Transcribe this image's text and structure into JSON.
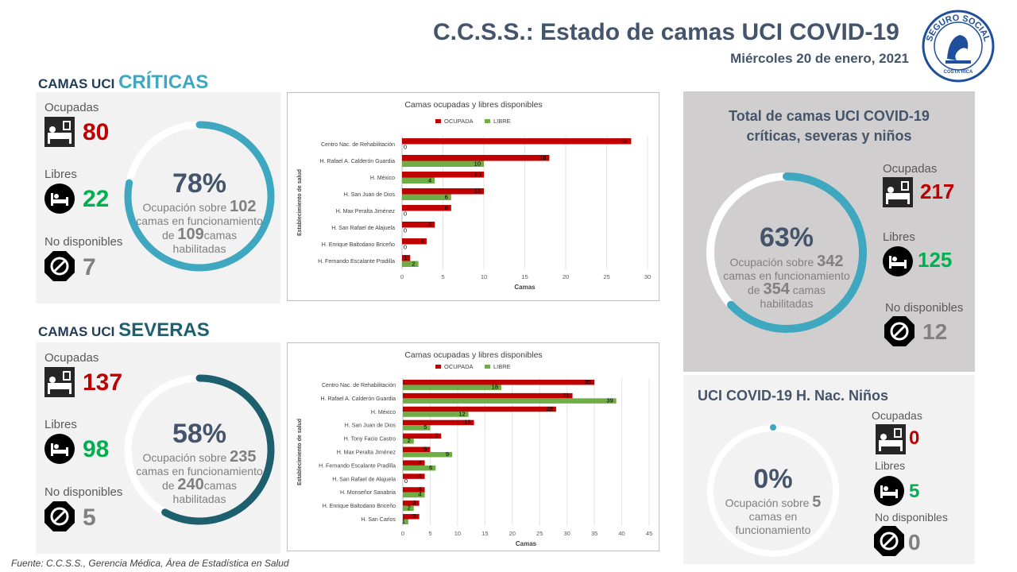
{
  "header": {
    "title": "C.C.S.S.: Estado de camas UCI COVID-19",
    "date": "Miércoles 20 de enero, 2021"
  },
  "logo": {
    "top_text": "SEGURO SOCIAL",
    "bottom_text": "COSTA RICA"
  },
  "criticas": {
    "title_a": "CAMAS UCI ",
    "title_b": "CRÍTICAS",
    "ocupadas_label": "Ocupadas",
    "ocupadas": "80",
    "libres_label": "Libres",
    "libres": "22",
    "nodisp_label": "No disponibles",
    "nodisp": "7",
    "pct": "78%",
    "pct_value": 0.78,
    "occ_prefix": "Ocupación sobre ",
    "funcionamiento": "102",
    "occ_mid": "camas en funcionamiento",
    "de": "de ",
    "habilitadas": "109",
    "camas": "camas",
    "habilitadas_label": "habilitadas"
  },
  "severas": {
    "title_a": "CAMAS UCI ",
    "title_b": "SEVERAS",
    "ocupadas_label": "Ocupadas",
    "ocupadas": "137",
    "libres_label": "Libres",
    "libres": "98",
    "nodisp_label": "No disponibles",
    "nodisp": "5",
    "pct": "58%",
    "pct_value": 0.58,
    "occ_prefix": "Ocupación sobre ",
    "funcionamiento": "235",
    "occ_mid": "camas en funcionamiento",
    "de": "de ",
    "habilitadas": "240",
    "camas": "camas",
    "habilitadas_label": "habilitadas"
  },
  "total": {
    "title_1": "Total de camas UCI COVID-19",
    "title_2": "críticas, severas y niños",
    "ocupadas_label": "Ocupadas",
    "ocupadas": "217",
    "libres_label": "Libres",
    "libres": "125",
    "nodisp_label": "No disponibles",
    "nodisp": "12",
    "pct": "63%",
    "pct_value": 0.63,
    "occ_prefix": "Ocupación sobre ",
    "funcionamiento": "342",
    "occ_mid": "camas en funcionamiento",
    "de": "de ",
    "habilitadas": "354",
    "camas": " camas",
    "habilitadas_label": "habilitadas"
  },
  "ninos": {
    "title": "UCI COVID-19 H. Nac. Niños",
    "ocupadas_label": "Ocupadas",
    "ocupadas": "0",
    "libres_label": "Libres",
    "libres": "5",
    "nodisp_label": "No disponibles",
    "nodisp": "0",
    "pct": "0%",
    "pct_value": 0.0,
    "occ_prefix": "Ocupación sobre ",
    "funcionamiento": "5",
    "occ_mid": "camas en",
    "occ_end": "funcionamiento"
  },
  "footer": "Fuente: C.C.S.S., Gerencia Médica, Área de Estadística en Salud",
  "colors": {
    "ocupada": "#c00000",
    "libre": "#70ad47",
    "criticas_arc": "#3fa7bf",
    "severas_arc": "#1e5f6e",
    "total_arc": "#3fa7bf",
    "ninos_arc": "#3fa7bf"
  },
  "chart_data": [
    {
      "type": "bar",
      "orientation": "horizontal",
      "title": "Camas ocupadas y libres disponibles",
      "xlabel": "Camas",
      "ylabel": "Establecimiento de salud",
      "categories": [
        "Centro Nac. de Rehabilitación",
        "H. Rafael A. Calderón Guardia",
        "H. México",
        "H. San Juan de Dios",
        "H. Max Peralta Jiménez",
        "H. San Rafael de Alajuela",
        "H. Enrique Baltodano Briceño",
        "H. Fernando Escalante Pradilla"
      ],
      "series": [
        {
          "name": "OCUPADA",
          "values": [
            28,
            18,
            10,
            10,
            6,
            4,
            3,
            1
          ]
        },
        {
          "name": "LIBRE",
          "values": [
            0,
            10,
            4,
            6,
            0,
            0,
            0,
            2
          ]
        }
      ],
      "xlim": [
        0,
        30
      ],
      "xticks": [
        0,
        5,
        10,
        15,
        20,
        25,
        30
      ],
      "legend": "top",
      "grid": true
    },
    {
      "type": "bar",
      "orientation": "horizontal",
      "title": "Camas ocupadas y libres disponibles",
      "xlabel": "Camas",
      "ylabel": "Establecimiento de salud",
      "categories": [
        "Centro Nac. de Rehabilitación",
        "H. Rafael A. Calderón Guardia",
        "H. México",
        "H. San Juan de Dios",
        "H. Tony Facio Castro",
        "H. Max Peralta Jiménez",
        "H. Fernando Escalante Pradilla",
        "H. San Rafael de Alajuela",
        "H. Monseñor Sanabria",
        "H. Enrique Baltodano Briceño",
        "H. San Carlos"
      ],
      "series": [
        {
          "name": "OCUPADA",
          "values": [
            35,
            31,
            28,
            13,
            7,
            5,
            4,
            4,
            4,
            3,
            3
          ]
        },
        {
          "name": "LIBRE",
          "values": [
            18,
            39,
            12,
            5,
            2,
            9,
            6,
            0,
            4,
            2,
            1
          ]
        }
      ],
      "xlim": [
        0,
        45
      ],
      "xticks": [
        0,
        5,
        10,
        15,
        20,
        25,
        30,
        35,
        40,
        45
      ],
      "legend": "top",
      "grid": true
    }
  ]
}
